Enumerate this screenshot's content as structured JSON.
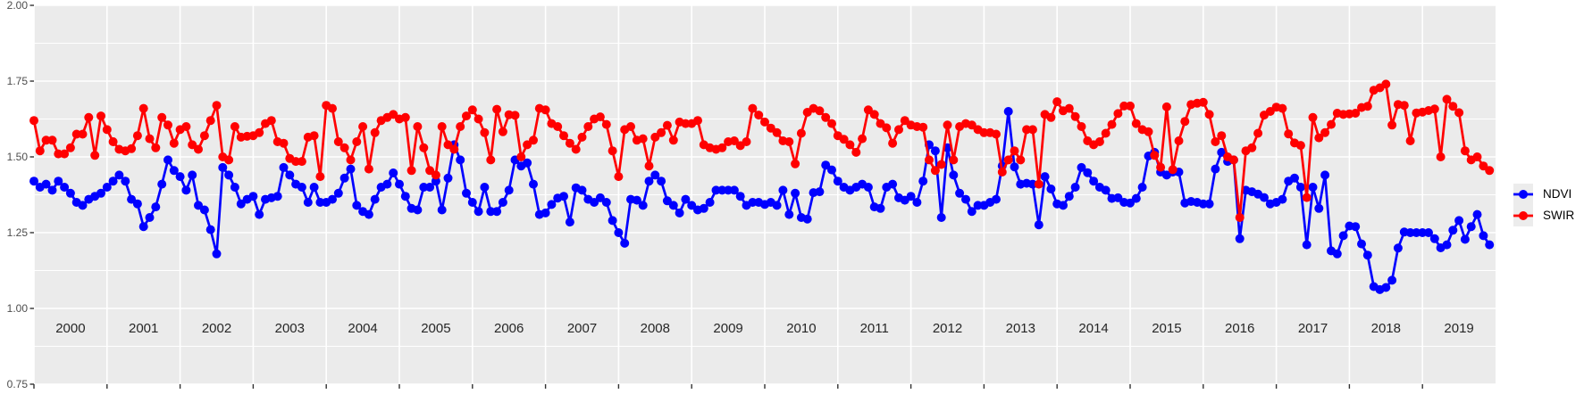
{
  "window": {
    "background": "#FFFFFF"
  },
  "legend": {
    "key_background": "#ECECEC",
    "items": [
      {
        "label": "NDVI",
        "color": "#0000FF"
      },
      {
        "label": "SWIR",
        "color": "#FF0000"
      }
    ]
  },
  "chart_data": {
    "type": "line",
    "title": "",
    "xlabel": "",
    "ylabel": "",
    "x_start_year": 2000,
    "points_per_year": 12,
    "xlim": [
      2000,
      2020
    ],
    "ylim": [
      0.75,
      2.0
    ],
    "x_tick_labels": [
      "2000",
      "2001",
      "2002",
      "2003",
      "2004",
      "2005",
      "2006",
      "2007",
      "2008",
      "2009",
      "2010",
      "2011",
      "2012",
      "2013",
      "2014",
      "2015",
      "2016",
      "2017",
      "2018",
      "2019"
    ],
    "y_tick_labels": [
      "0.75",
      "1.00",
      "1.25",
      "1.50",
      "1.75",
      "2.00"
    ],
    "y_major_gridlines": [
      0.75,
      1.0,
      1.25,
      1.5,
      1.75,
      2.0
    ],
    "y_minor_gridlines": [
      0.875,
      1.125,
      1.375,
      1.625,
      1.875
    ],
    "panel_background": "#EBEBEB",
    "gridline_color": "#FFFFFF",
    "axis_text_color": "#4D4D4D",
    "year_label_color": "#262626",
    "legend_position": "right",
    "grid": "major horizontal and vertical white lines, minor horizontal white lines, grey panel",
    "series": [
      {
        "name": "NDVI",
        "color": "#0000FF",
        "values": [
          1.42,
          1.4,
          1.41,
          1.39,
          1.42,
          1.4,
          1.38,
          1.35,
          1.34,
          1.36,
          1.37,
          1.38,
          1.4,
          1.42,
          1.44,
          1.42,
          1.36,
          1.345,
          1.27,
          1.3,
          1.335,
          1.41,
          1.49,
          1.455,
          1.435,
          1.39,
          1.44,
          1.34,
          1.325,
          1.26,
          1.18,
          1.465,
          1.44,
          1.4,
          1.345,
          1.36,
          1.37,
          1.31,
          1.36,
          1.365,
          1.37,
          1.465,
          1.44,
          1.41,
          1.4,
          1.35,
          1.4,
          1.35,
          1.35,
          1.36,
          1.38,
          1.43,
          1.46,
          1.34,
          1.32,
          1.31,
          1.36,
          1.4,
          1.41,
          1.447,
          1.41,
          1.37,
          1.33,
          1.325,
          1.4,
          1.4,
          1.42,
          1.325,
          1.43,
          1.54,
          1.49,
          1.38,
          1.35,
          1.32,
          1.4,
          1.32,
          1.32,
          1.35,
          1.39,
          1.49,
          1.47,
          1.48,
          1.41,
          1.31,
          1.315,
          1.343,
          1.364,
          1.37,
          1.285,
          1.398,
          1.39,
          1.36,
          1.35,
          1.365,
          1.35,
          1.29,
          1.25,
          1.215,
          1.36,
          1.357,
          1.34,
          1.42,
          1.44,
          1.42,
          1.355,
          1.34,
          1.315,
          1.36,
          1.34,
          1.325,
          1.33,
          1.35,
          1.39,
          1.39,
          1.39,
          1.39,
          1.37,
          1.34,
          1.35,
          1.35,
          1.343,
          1.35,
          1.34,
          1.39,
          1.31,
          1.38,
          1.3,
          1.295,
          1.382,
          1.385,
          1.473,
          1.457,
          1.42,
          1.4,
          1.39,
          1.4,
          1.41,
          1.4,
          1.335,
          1.33,
          1.4,
          1.41,
          1.365,
          1.357,
          1.37,
          1.35,
          1.42,
          1.54,
          1.52,
          1.3,
          1.53,
          1.44,
          1.38,
          1.36,
          1.32,
          1.34,
          1.34,
          1.35,
          1.36,
          1.47,
          1.65,
          1.467,
          1.41,
          1.413,
          1.41,
          1.276,
          1.435,
          1.394,
          1.345,
          1.34,
          1.37,
          1.4,
          1.465,
          1.448,
          1.42,
          1.4,
          1.39,
          1.363,
          1.365,
          1.35,
          1.348,
          1.363,
          1.4,
          1.503,
          1.515,
          1.45,
          1.44,
          1.45,
          1.45,
          1.348,
          1.353,
          1.35,
          1.345,
          1.345,
          1.46,
          1.515,
          1.485,
          1.49,
          1.23,
          1.39,
          1.385,
          1.377,
          1.366,
          1.345,
          1.35,
          1.36,
          1.42,
          1.43,
          1.4,
          1.21,
          1.4,
          1.33,
          1.44,
          1.19,
          1.18,
          1.24,
          1.272,
          1.27,
          1.213,
          1.176,
          1.072,
          1.062,
          1.069,
          1.093,
          1.199,
          1.252,
          1.25,
          1.25,
          1.25,
          1.25,
          1.23,
          1.2,
          1.21,
          1.258,
          1.29,
          1.228,
          1.27,
          1.31,
          1.24,
          1.21
        ]
      },
      {
        "name": "SWIR",
        "color": "#FF0000",
        "values": [
          1.62,
          1.52,
          1.555,
          1.555,
          1.51,
          1.51,
          1.53,
          1.575,
          1.575,
          1.63,
          1.505,
          1.635,
          1.59,
          1.55,
          1.525,
          1.52,
          1.527,
          1.57,
          1.66,
          1.56,
          1.53,
          1.63,
          1.605,
          1.545,
          1.59,
          1.6,
          1.54,
          1.525,
          1.57,
          1.62,
          1.67,
          1.5,
          1.49,
          1.6,
          1.565,
          1.568,
          1.57,
          1.58,
          1.61,
          1.62,
          1.55,
          1.545,
          1.495,
          1.485,
          1.485,
          1.565,
          1.57,
          1.435,
          1.67,
          1.66,
          1.55,
          1.53,
          1.49,
          1.55,
          1.6,
          1.46,
          1.58,
          1.62,
          1.63,
          1.64,
          1.625,
          1.63,
          1.455,
          1.6,
          1.53,
          1.455,
          1.44,
          1.6,
          1.54,
          1.525,
          1.6,
          1.635,
          1.655,
          1.625,
          1.58,
          1.49,
          1.657,
          1.583,
          1.639,
          1.637,
          1.5,
          1.54,
          1.555,
          1.66,
          1.655,
          1.61,
          1.6,
          1.57,
          1.545,
          1.525,
          1.565,
          1.6,
          1.625,
          1.632,
          1.607,
          1.52,
          1.435,
          1.59,
          1.6,
          1.555,
          1.56,
          1.47,
          1.565,
          1.58,
          1.604,
          1.555,
          1.615,
          1.61,
          1.61,
          1.62,
          1.54,
          1.53,
          1.525,
          1.53,
          1.55,
          1.553,
          1.537,
          1.55,
          1.66,
          1.638,
          1.615,
          1.595,
          1.58,
          1.553,
          1.55,
          1.477,
          1.578,
          1.647,
          1.66,
          1.652,
          1.63,
          1.61,
          1.57,
          1.558,
          1.54,
          1.515,
          1.56,
          1.655,
          1.64,
          1.61,
          1.596,
          1.545,
          1.59,
          1.62,
          1.605,
          1.6,
          1.598,
          1.49,
          1.455,
          1.475,
          1.605,
          1.49,
          1.6,
          1.61,
          1.605,
          1.59,
          1.58,
          1.58,
          1.575,
          1.45,
          1.49,
          1.52,
          1.49,
          1.59,
          1.59,
          1.41,
          1.64,
          1.63,
          1.682,
          1.652,
          1.66,
          1.633,
          1.6,
          1.553,
          1.54,
          1.55,
          1.578,
          1.607,
          1.643,
          1.668,
          1.668,
          1.61,
          1.59,
          1.583,
          1.505,
          1.466,
          1.665,
          1.458,
          1.553,
          1.617,
          1.673,
          1.677,
          1.68,
          1.64,
          1.55,
          1.57,
          1.5,
          1.49,
          1.3,
          1.52,
          1.53,
          1.578,
          1.638,
          1.65,
          1.664,
          1.66,
          1.576,
          1.546,
          1.538,
          1.366,
          1.63,
          1.563,
          1.58,
          1.607,
          1.644,
          1.64,
          1.642,
          1.644,
          1.663,
          1.667,
          1.72,
          1.728,
          1.74,
          1.605,
          1.673,
          1.67,
          1.553,
          1.645,
          1.648,
          1.653,
          1.658,
          1.5,
          1.69,
          1.667,
          1.646,
          1.52,
          1.49,
          1.5,
          1.47,
          1.455
        ]
      }
    ]
  }
}
